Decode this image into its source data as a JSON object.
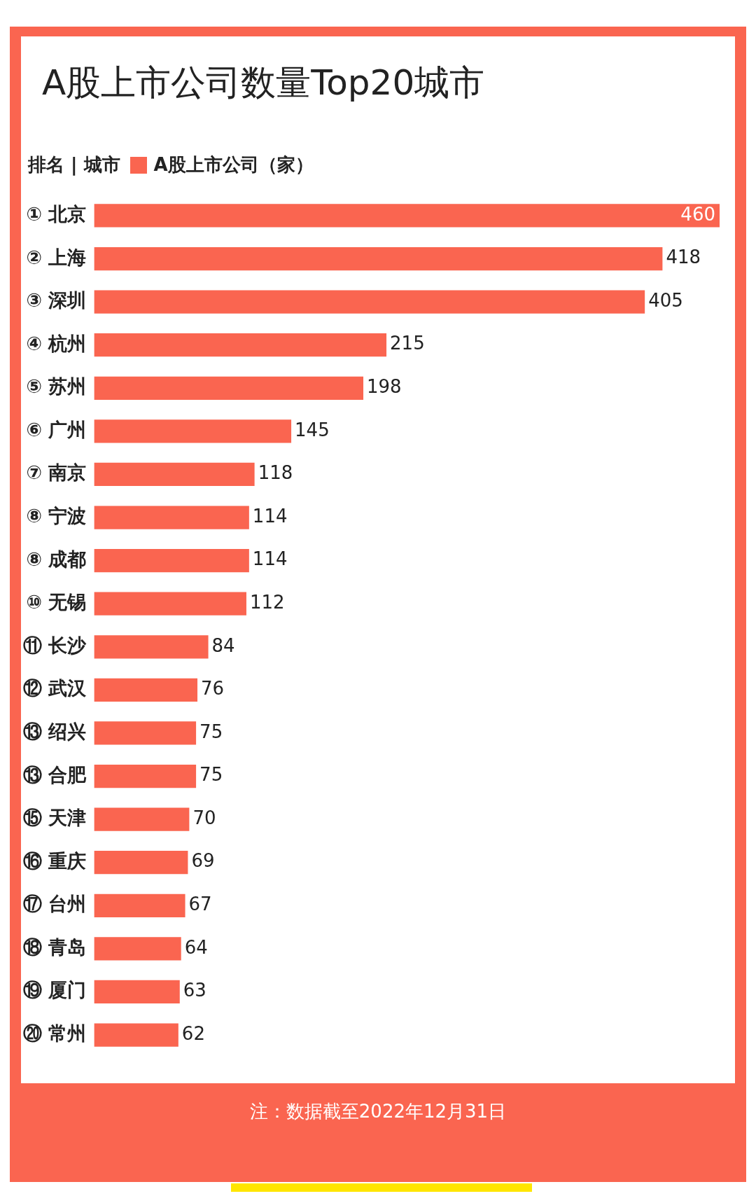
{
  "chart_data": {
    "type": "bar",
    "orientation": "horizontal",
    "title": "A股上市公司数量Top20城市",
    "ylabel": "排名 | 城市",
    "categories": [
      "① 北京",
      "② 上海",
      "③ 深圳",
      "④ 杭州",
      "⑤ 苏州",
      "⑥ 广州",
      "⑦ 南京",
      "⑧ 宁波",
      "⑧ 成都",
      "⑩ 无锡",
      "⑪ 长沙",
      "⑫ 武汉",
      "⑬ 绍兴",
      "⑬ 合肥",
      "⑮ 天津",
      "⑯ 重庆",
      "⑰ 台州",
      "⑱ 青岛",
      "⑲ 厦门",
      "⑳ 常州"
    ],
    "series": [
      {
        "name": "A股上市公司（家）",
        "color": "#fa6550",
        "values": [
          460,
          418,
          405,
          215,
          198,
          145,
          118,
          114,
          114,
          112,
          84,
          76,
          75,
          75,
          70,
          69,
          67,
          64,
          63,
          62
        ]
      }
    ],
    "data_labels": true,
    "grid": false,
    "legend": "top left",
    "tick_labels": "y",
    "annotations": [
      "注：数据截至2022年12月31日"
    ]
  }
}
